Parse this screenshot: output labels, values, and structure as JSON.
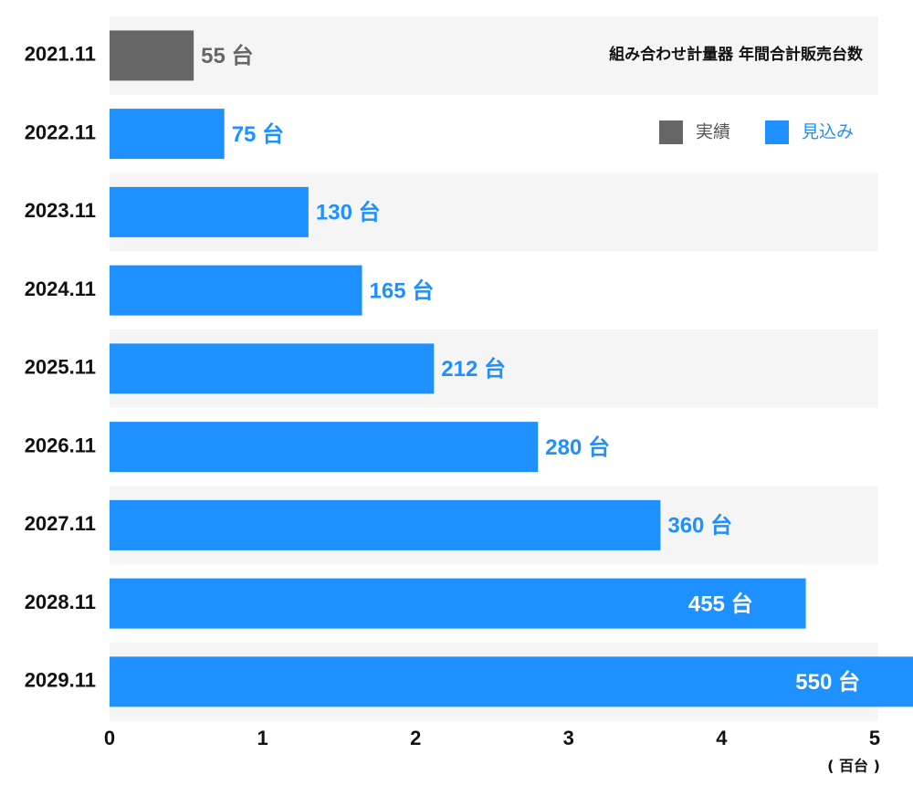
{
  "chart_data": {
    "type": "bar",
    "orientation": "horizontal",
    "title": "組み合わせ計量器 年間合計販売台数",
    "x_label": "( 百台 )",
    "categories": [
      "2021.11",
      "2022.11",
      "2023.11",
      "2024.11",
      "2025.11",
      "2026.11",
      "2027.11",
      "2028.11",
      "2029.11"
    ],
    "series": [
      {
        "name": "実績",
        "color": "#666666",
        "values": [
          0.55,
          null,
          null,
          null,
          null,
          null,
          null,
          null,
          null
        ],
        "value_labels": [
          "55 台",
          null,
          null,
          null,
          null,
          null,
          null,
          null,
          null
        ]
      },
      {
        "name": "見込み",
        "color": "#1e90ff",
        "values": [
          null,
          0.75,
          1.3,
          1.65,
          2.12,
          2.8,
          3.6,
          4.55,
          5.5
        ],
        "value_labels": [
          null,
          "75 台",
          "130 台",
          "165 台",
          "212 台",
          "280 台",
          "360 台",
          "455 台",
          "550 台"
        ]
      }
    ],
    "xlim": [
      0,
      5
    ],
    "xticks": [
      0,
      1,
      2,
      3,
      4,
      5
    ],
    "legend": "top-right"
  }
}
